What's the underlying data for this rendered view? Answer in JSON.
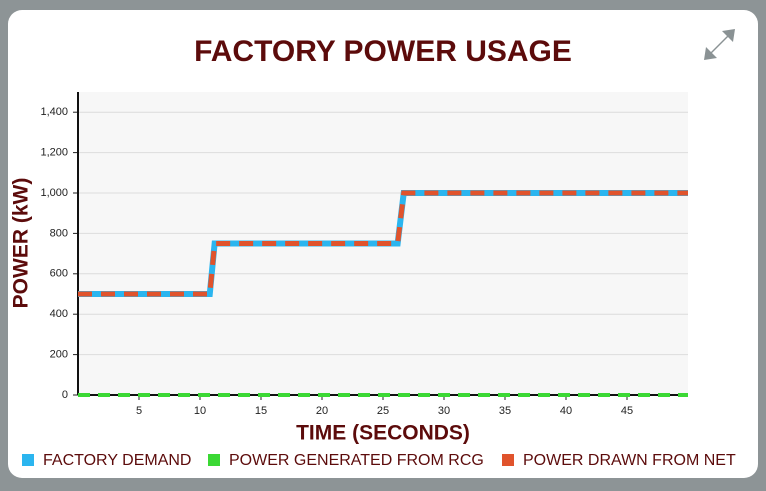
{
  "chart_data": {
    "type": "line",
    "title": "FACTORY POWER USAGE",
    "x_label": "TIME (SECONDS)",
    "y_label": "POWER (kW)",
    "x": [
      0,
      10.8,
      11.2,
      26.2,
      26.7,
      50
    ],
    "series": [
      {
        "name": "FACTORY DEMAND",
        "color": "#2bb5ef",
        "values": [
          500,
          500,
          750,
          750,
          1000,
          1000
        ]
      },
      {
        "name": "POWER GENERATED FROM RCG",
        "color": "#3bd834",
        "values": [
          0,
          0,
          0,
          0,
          0,
          0
        ]
      },
      {
        "name": "POWER DRAWN FROM NET",
        "color": "#e0532c",
        "values": [
          500,
          500,
          750,
          750,
          1000,
          1000
        ]
      }
    ],
    "xlim": [
      0,
      50
    ],
    "xticks": [
      5,
      10,
      15,
      20,
      25,
      30,
      35,
      40,
      45
    ],
    "ylim": [
      0,
      1500
    ],
    "yticks": [
      0,
      200,
      400,
      600,
      800,
      {
        "value": 1000,
        "label": "1,000"
      },
      {
        "value": 1200,
        "label": "1,200"
      },
      {
        "value": 1400,
        "label": "1,400"
      }
    ],
    "grid": true
  }
}
